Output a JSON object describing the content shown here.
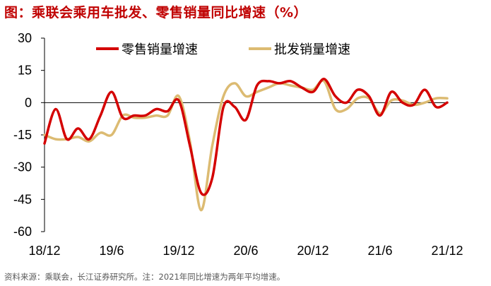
{
  "header": {
    "title": "图：乘联会乘用车批发、零售销量同比增速（%）"
  },
  "footer": {
    "source": "资料来源：乘联会，长江证券研究所。注：2021年同比增速为两年平均增速。"
  },
  "colors": {
    "retail": "#d40000",
    "wholesale": "#dcbb72"
  },
  "chart_data": {
    "type": "line",
    "x": [
      "2018-12",
      "2019-01",
      "2019-02",
      "2019-03",
      "2019-04",
      "2019-05",
      "2019-06",
      "2019-07",
      "2019-08",
      "2019-09",
      "2019-10",
      "2019-11",
      "2019-12",
      "2020-01",
      "2020-02",
      "2020-03",
      "2020-04",
      "2020-05",
      "2020-06",
      "2020-07",
      "2020-08",
      "2020-09",
      "2020-10",
      "2020-11",
      "2020-12",
      "2021-01",
      "2021-02",
      "2021-03",
      "2021-04",
      "2021-05",
      "2021-06",
      "2021-07",
      "2021-08",
      "2021-09",
      "2021-10",
      "2021-11",
      "2021-12"
    ],
    "xticks": [
      "18/12",
      "19/6",
      "19/12",
      "20/6",
      "20/12",
      "21/6",
      "21/12"
    ],
    "xtick_index": [
      0,
      6,
      12,
      18,
      24,
      30,
      36
    ],
    "ylim": [
      -60,
      30
    ],
    "yticks": [
      30,
      15,
      0,
      -15,
      -30,
      -45,
      -60
    ],
    "legend_position": "top",
    "series": [
      {
        "name": "零售销量增速",
        "values": [
          -19,
          -3,
          -17,
          -12,
          -17,
          -6,
          5,
          -7,
          -6,
          -6,
          -3,
          -4,
          1,
          -20,
          -42,
          -35,
          -2,
          -2,
          -8,
          8,
          10,
          9,
          10,
          7,
          5,
          11,
          3,
          0,
          6,
          3,
          -6,
          5,
          0,
          -1,
          6,
          -2,
          0
        ]
      },
      {
        "name": "批发销量增速",
        "values": [
          -15,
          -17,
          -17,
          -16,
          -18,
          -14,
          -15,
          -6,
          -7,
          -7,
          -6,
          -6,
          3,
          -18,
          -50,
          -20,
          3,
          9,
          3,
          5,
          7,
          9,
          8,
          7,
          6,
          10,
          -3,
          -3,
          2,
          2,
          -5,
          1,
          1,
          -1,
          0,
          2,
          2
        ]
      }
    ]
  }
}
